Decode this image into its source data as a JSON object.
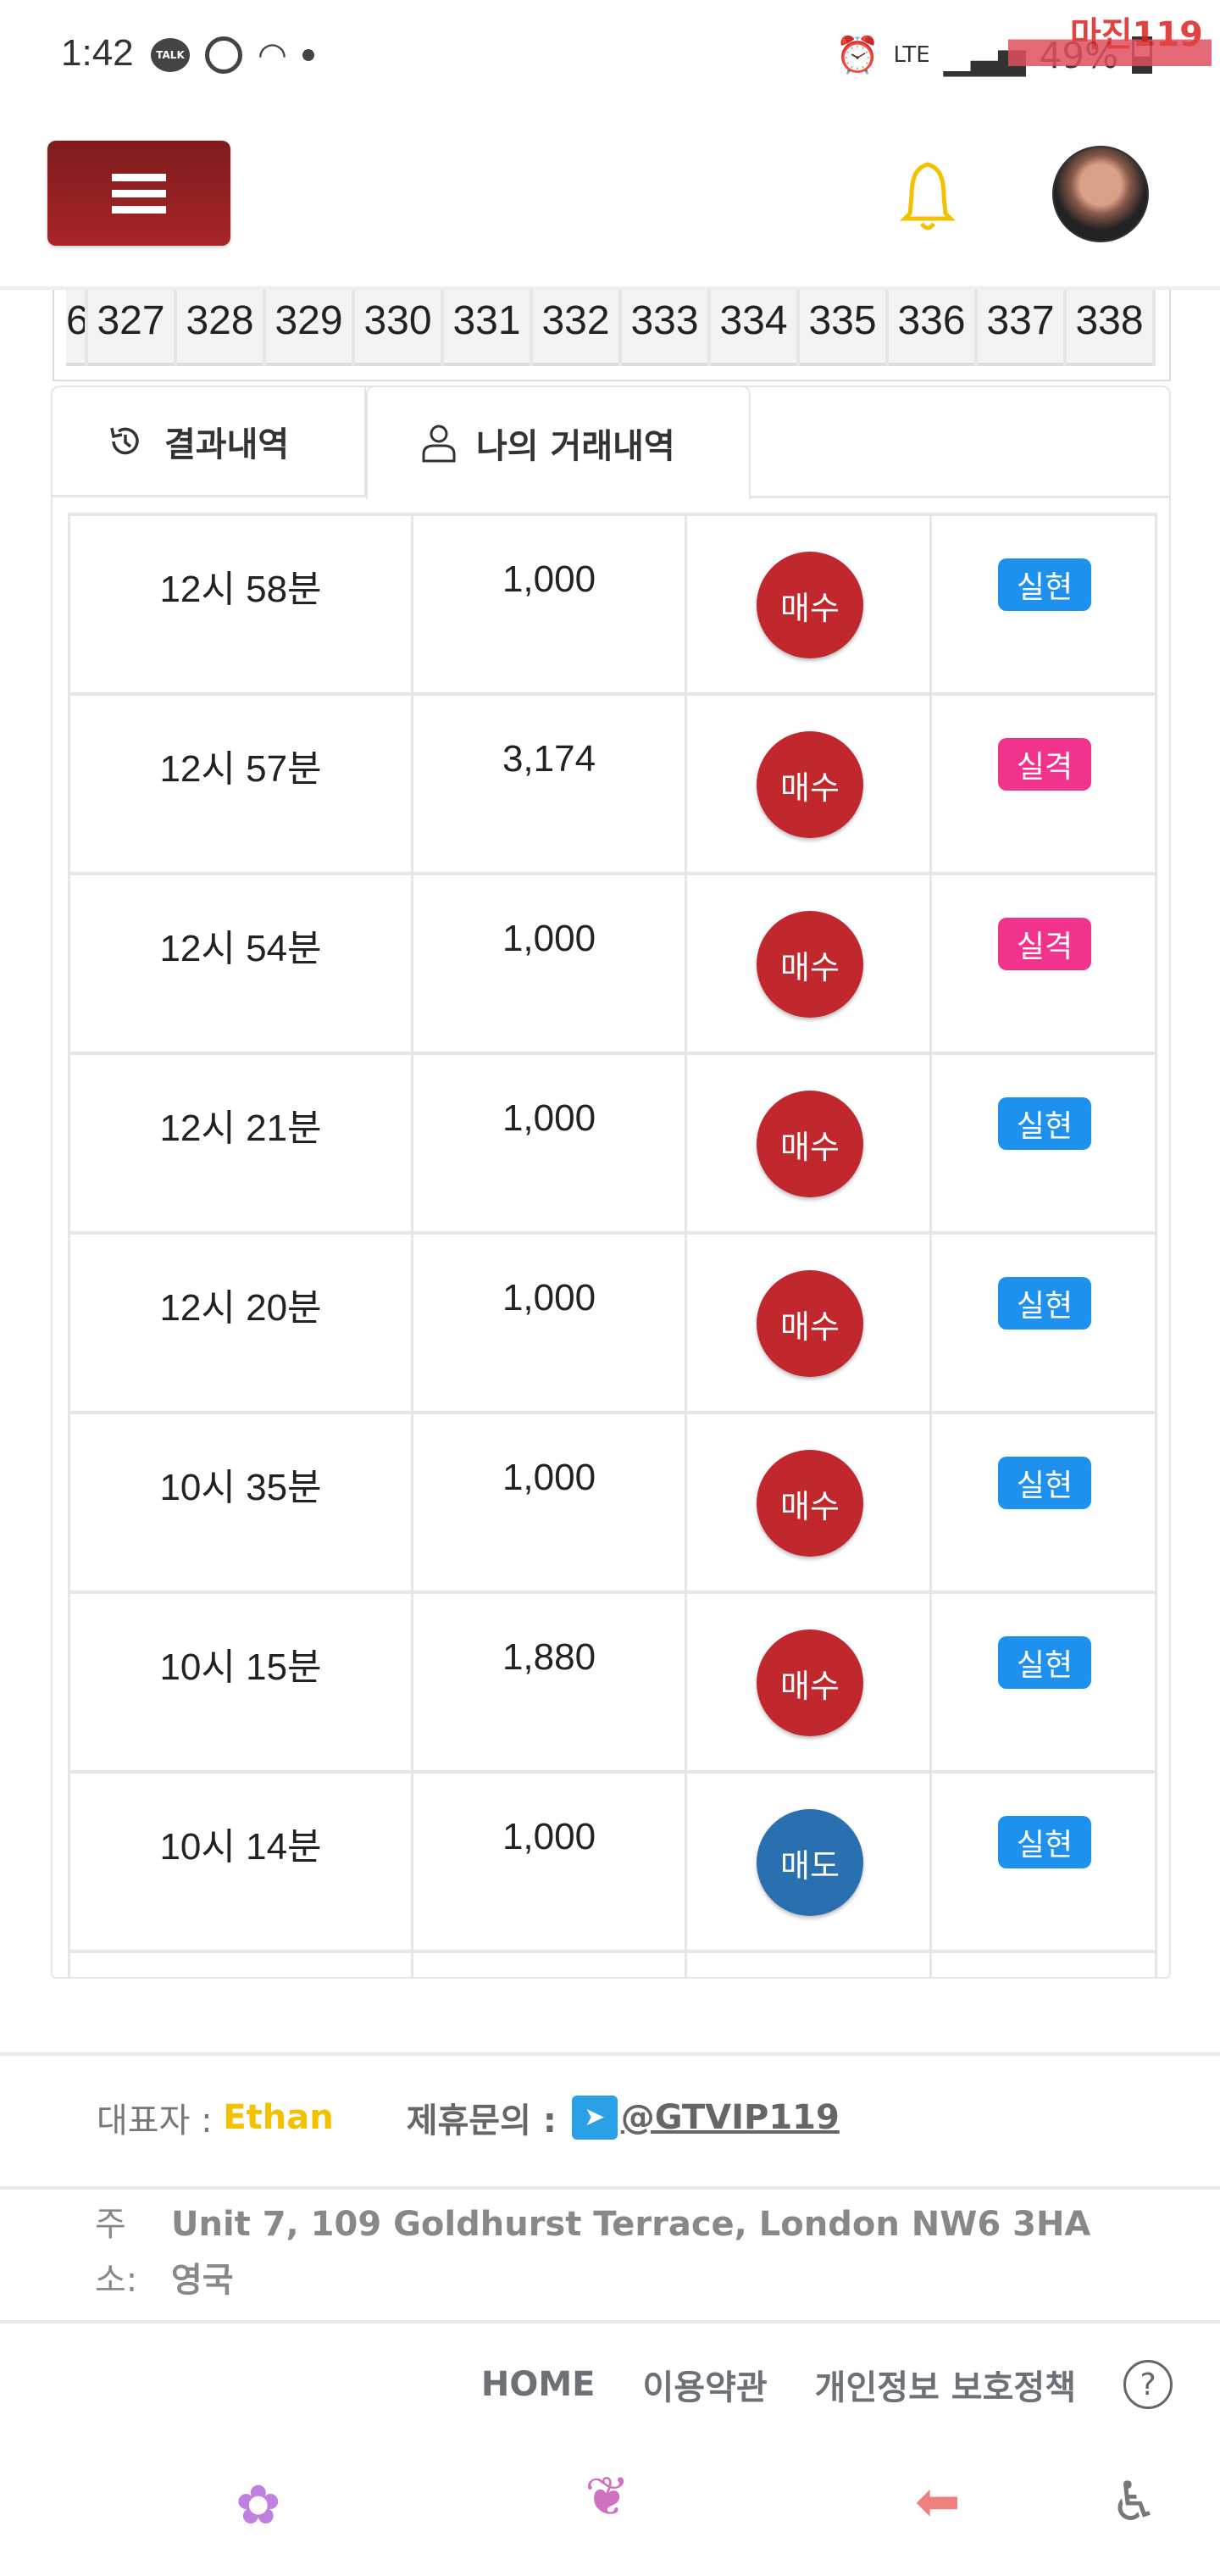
{
  "status_bar": {
    "time": "1:42",
    "talk_label": "TALK",
    "network": "LTE",
    "battery": "49%",
    "watermark": "마진119"
  },
  "header": {
    "menu_icon": "hamburger-icon",
    "bell_icon": "bell-icon",
    "avatar": "user-avatar"
  },
  "round_strip": {
    "partial": "6",
    "numbers": [
      "327",
      "328",
      "329",
      "330",
      "331",
      "332",
      "333",
      "334",
      "335",
      "336",
      "337",
      "338"
    ]
  },
  "tabs": [
    {
      "label": "결과내역",
      "icon": "history-icon"
    },
    {
      "label": "나의 거래내역",
      "icon": "user-icon",
      "active": true
    }
  ],
  "colors": {
    "buy": "#c0282e",
    "sell": "#2a6fb0",
    "realized": "#1e90ee",
    "failed": "#f2338e",
    "accent": "#a82428"
  },
  "trades": [
    {
      "time": "12시 58분",
      "amount": "1,000",
      "side": "매수",
      "side_type": "buy",
      "result": "실현",
      "result_type": "realized"
    },
    {
      "time": "12시 57분",
      "amount": "3,174",
      "side": "매수",
      "side_type": "buy",
      "result": "실격",
      "result_type": "failed"
    },
    {
      "time": "12시 54분",
      "amount": "1,000",
      "side": "매수",
      "side_type": "buy",
      "result": "실격",
      "result_type": "failed"
    },
    {
      "time": "12시 21분",
      "amount": "1,000",
      "side": "매수",
      "side_type": "buy",
      "result": "실현",
      "result_type": "realized"
    },
    {
      "time": "12시 20분",
      "amount": "1,000",
      "side": "매수",
      "side_type": "buy",
      "result": "실현",
      "result_type": "realized"
    },
    {
      "time": "10시 35분",
      "amount": "1,000",
      "side": "매수",
      "side_type": "buy",
      "result": "실현",
      "result_type": "realized"
    },
    {
      "time": "10시 15분",
      "amount": "1,880",
      "side": "매수",
      "side_type": "buy",
      "result": "실현",
      "result_type": "realized"
    },
    {
      "time": "10시 14분",
      "amount": "1,000",
      "side": "매도",
      "side_type": "sell",
      "result": "실현",
      "result_type": "realized"
    }
  ],
  "footer": {
    "ceo_label": "대표자 : ",
    "ceo_name": "Ethan",
    "contact_label": "제휴문의 : ",
    "contact_handle": "@GTVIP119",
    "address_label_1": "주",
    "address_label_2": "소:",
    "address_line1": "Unit 7, 109 Goldhurst Terrace, London NW6 3HA",
    "address_line2": "영국",
    "links": [
      "HOME",
      "이용약관",
      "개인정보 보호정책"
    ],
    "help": "?"
  }
}
